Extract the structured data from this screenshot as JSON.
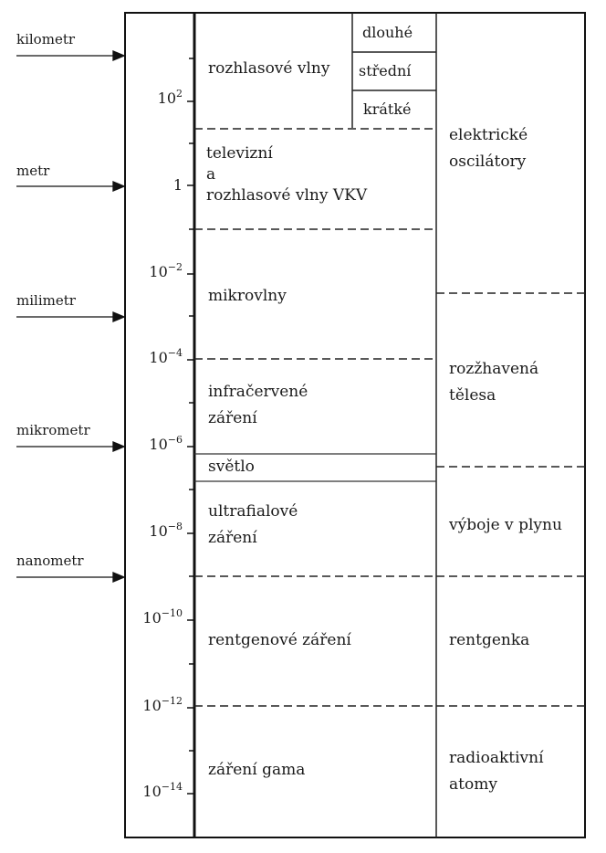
{
  "unit_labels": [
    "kilometr",
    "metr",
    "milimetr",
    "mikrometr",
    "nanometr"
  ],
  "ticks": [
    {
      "base": "10",
      "exp": "2"
    },
    {
      "base": "1",
      "exp": ""
    },
    {
      "base": "10",
      "exp": "−2"
    },
    {
      "base": "10",
      "exp": "−4"
    },
    {
      "base": "10",
      "exp": "−6"
    },
    {
      "base": "10",
      "exp": "−8"
    },
    {
      "base": "10",
      "exp": "−10"
    },
    {
      "base": "10",
      "exp": "−12"
    },
    {
      "base": "10",
      "exp": "−14"
    }
  ],
  "regions": {
    "radio": "rozhlasové vlny",
    "radio_long": "dlouhé",
    "radio_medium": "střední",
    "radio_short": "krátké",
    "tv_line1": "televizní",
    "tv_line2": "a",
    "tv_line3": "rozhlasové vlny VKV",
    "microwaves": "mikrovlny",
    "infrared_line1": "infračervené",
    "infrared_line2": "záření",
    "light": "světlo",
    "ultraviolet_line1": "ultrafialové",
    "ultraviolet_line2": "záření",
    "xray": "rentgenové záření",
    "gamma": "záření gama"
  },
  "sources": {
    "electric_line1": "elektrické",
    "electric_line2": "oscilátory",
    "hot_line1": "rozžhavená",
    "hot_line2": "tělesa",
    "discharge": "výboje v plynu",
    "xray_tube": "rentgenka",
    "radio_line1": "radioaktivní",
    "radio_line2": "atomy"
  }
}
